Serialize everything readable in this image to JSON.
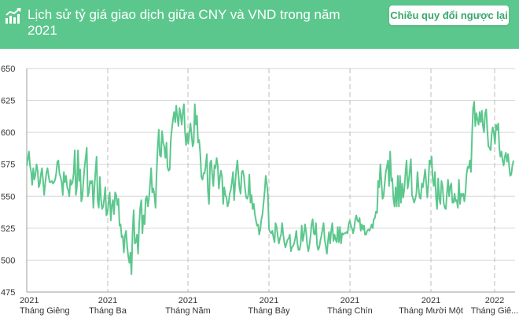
{
  "header": {
    "title": "Lịch sử tỷ giá giao dịch giữa CNY và VND trong năm 2021",
    "swap_button": "Chiều quy đổi ngược lại",
    "icon": "trending-up-icon",
    "accent_color": "#5cc78d"
  },
  "chart_data": {
    "type": "line",
    "title": "",
    "xlabel": "",
    "ylabel": "",
    "ylim": [
      475,
      650
    ],
    "yticks": [
      475,
      500,
      525,
      550,
      575,
      600,
      625,
      650
    ],
    "xticks": [
      {
        "year": "2021",
        "month": "Tháng Giêng"
      },
      {
        "year": "2021",
        "month": "Tháng Ba"
      },
      {
        "year": "2021",
        "month": "Tháng Năm"
      },
      {
        "year": "2021",
        "month": "Tháng Bảy"
      },
      {
        "year": "2021",
        "month": "Tháng Chín"
      },
      {
        "year": "2021",
        "month": "Tháng Mười Một"
      },
      {
        "year": "2022",
        "month": "Tháng Giê..."
      }
    ],
    "grid": true,
    "line_color": "#5cc78d",
    "series": [
      {
        "name": "",
        "values": [
          574,
          579,
          585,
          574,
          569,
          559,
          572,
          563,
          567,
          575,
          570,
          557,
          560,
          567,
          572,
          562,
          551,
          561,
          568,
          572,
          566,
          561,
          561,
          562,
          560,
          561,
          563,
          568,
          577,
          578,
          568,
          565,
          561,
          551,
          569,
          561,
          566,
          557,
          555,
          550,
          563,
          559,
          561,
          568,
          586,
          551,
          557,
          586,
          562,
          571,
          546,
          550,
          563,
          573,
          580,
          588,
          550,
          553,
          562,
          560,
          562,
          541,
          556,
          569,
          581,
          547,
          541,
          565,
          548,
          540,
          542,
          548,
          557,
          535,
          537,
          546,
          553,
          531,
          543,
          547,
          536,
          553,
          551,
          543,
          548,
          527,
          528,
          518,
          519,
          506,
          519,
          523,
          511,
          503,
          498,
          506,
          489,
          522,
          539,
          513,
          514,
          520,
          505,
          528,
          541,
          547,
          521,
          535,
          528,
          548,
          550,
          542,
          548,
          559,
          572,
          553,
          556,
          551,
          541,
          569,
          588,
          602,
          582,
          581,
          601,
          592,
          589,
          580,
          592,
          573,
          570,
          571,
          594,
          603,
          610,
          616,
          608,
          621,
          612,
          605,
          619,
          614,
          606,
          616,
          622,
          601,
          590,
          599,
          591,
          600,
          607,
          598,
          589,
          592,
          622,
          606,
          613,
          592,
          594,
          583,
          565,
          563,
          568,
          568,
          574,
          583,
          554,
          544,
          576,
          578,
          567,
          558,
          574,
          572,
          580,
          574,
          556,
          565,
          570,
          565,
          544,
          557,
          551,
          549,
          542,
          545,
          552,
          555,
          561,
          569,
          547,
          560,
          571,
          578,
          566,
          556,
          552,
          569,
          570,
          566,
          556,
          549,
          548,
          551,
          567,
          545,
          551,
          540,
          544,
          536,
          531,
          527,
          528,
          520,
          524,
          532,
          536,
          545,
          554,
          566,
          560,
          551,
          524,
          522,
          521,
          523,
          518,
          514,
          529,
          526,
          519,
          513,
          517,
          520,
          529,
          520,
          514,
          510,
          513,
          516,
          517,
          520,
          507,
          510,
          511,
          513,
          517,
          523,
          513,
          508,
          508,
          513,
          527,
          515,
          520,
          528,
          522,
          512,
          507,
          512,
          519,
          528,
          532,
          521,
          520,
          529,
          512,
          508,
          510,
          515,
          519,
          524,
          529,
          516,
          511,
          505,
          515,
          522,
          513,
          523,
          529,
          515,
          520,
          516,
          514,
          526,
          514,
          526,
          513,
          521,
          520,
          521,
          521,
          522,
          521,
          528,
          531,
          527,
          525,
          521,
          525,
          532,
          535,
          531,
          530,
          533,
          523,
          528,
          524,
          527,
          520,
          520,
          523,
          524,
          523,
          525,
          528,
          525,
          532,
          533,
          538,
          537,
          562,
          557,
          575,
          561,
          548,
          550,
          560,
          569,
          573,
          578,
          558,
          585,
          562,
          564,
          548,
          542,
          557,
          542,
          566,
          542,
          566,
          545,
          560,
          549,
          556,
          568,
          578,
          556,
          562,
          571,
          579,
          551,
          548,
          545,
          548,
          552,
          569,
          556,
          549,
          548,
          560,
          557,
          564,
          571,
          561,
          549,
          559,
          578,
          575,
          581,
          563,
          558,
          569,
          549,
          540,
          564,
          548,
          544,
          562,
          558,
          545,
          541,
          540,
          552,
          563,
          550,
          558,
          560,
          545,
          545,
          552,
          546,
          547,
          541,
          563,
          544,
          552,
          550,
          552,
          546,
          553,
          567,
          573,
          572,
          578,
          569,
          597,
          619,
          624,
          605,
          615,
          610,
          606,
          616,
          608,
          617,
          605,
          600,
          615,
          618,
          602,
          589,
          588,
          586,
          598,
          604,
          600,
          591,
          606,
          602,
          607,
          588,
          581,
          585,
          578,
          574,
          581,
          584,
          577,
          583,
          574,
          566,
          567,
          574,
          578
        ]
      }
    ]
  }
}
